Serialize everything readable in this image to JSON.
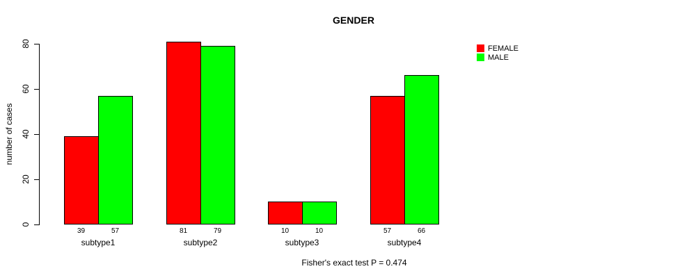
{
  "chart_data": {
    "type": "bar",
    "title": "GENDER",
    "ylabel": "number of cases",
    "xlabel": "",
    "categories": [
      "subtype1",
      "subtype2",
      "subtype3",
      "subtype4"
    ],
    "series": [
      {
        "name": "FEMALE",
        "color": "#ff0000",
        "values": [
          39,
          81,
          10,
          57
        ]
      },
      {
        "name": "MALE",
        "color": "#00ff00",
        "values": [
          57,
          79,
          10,
          66
        ]
      }
    ],
    "yticks": [
      0,
      20,
      40,
      60,
      80
    ],
    "ylim": [
      0,
      80
    ],
    "grid": false,
    "bar_value_labels_shown": true,
    "legend_position": "top-right",
    "footer": "Fisher's exact test P = 0.474",
    "axis_color": "#000000",
    "background_color": "#ffffff"
  }
}
